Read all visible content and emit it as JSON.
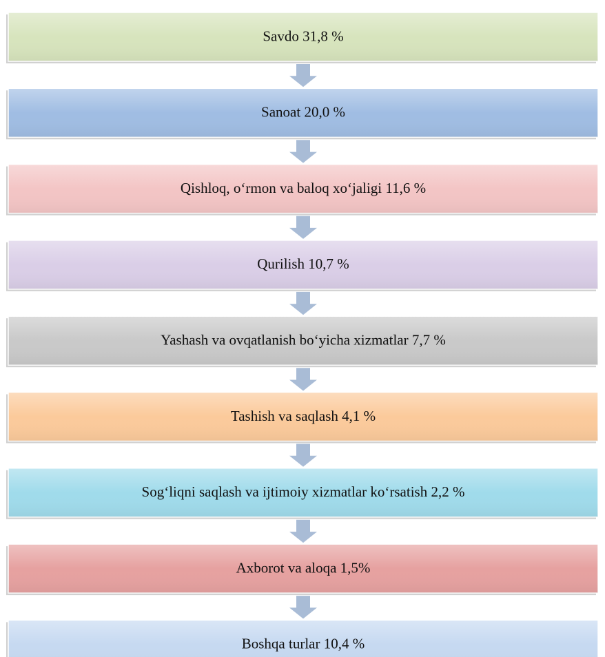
{
  "nodes": [
    {
      "label": "Savdo 31,8 %",
      "color": "#d7e4bd"
    },
    {
      "label": "Sanoat 20,0 %",
      "color": "#a0bde3"
    },
    {
      "label": "Qishloq, o‘rmon va baloq xo‘jaligi 11,6 %",
      "color": "#f3c5c5"
    },
    {
      "label": "Qurilish 10,7 %",
      "color": "#dacee7"
    },
    {
      "label": "Yashash va ovqatlanish bo‘yicha xizmatlar 7,7 %",
      "color": "#c9c9c9"
    },
    {
      "label": "Tashish va saqlash 4,1 %",
      "color": "#fbca9b"
    },
    {
      "label": "Sog‘liqni saqlash va ijtimoiy xizmatlar ko‘rsatish 2,2 %",
      "color": "#a0dbeb"
    },
    {
      "label": "Axborot va aloqa 1,5%",
      "color": "#e6a1a0"
    },
    {
      "label": "Boshqa turlar 10,4 %",
      "color": "#c6d9f1"
    }
  ]
}
